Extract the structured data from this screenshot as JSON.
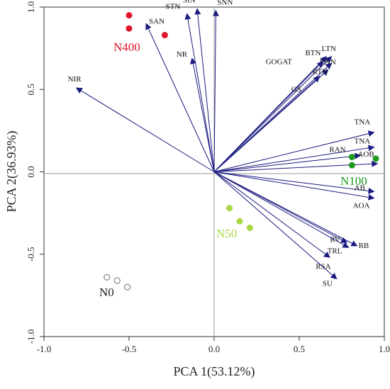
{
  "chart_data": {
    "type": "scatter",
    "subtype": "pca-biplot",
    "xlabel": "PCA 1(53.12%)",
    "ylabel": "PCA 2(36.93%)",
    "xlim": [
      -1.0,
      1.0
    ],
    "ylim": [
      -1.0,
      1.0
    ],
    "x_ticks": [
      {
        "value": -1.0,
        "label": "-1.0"
      },
      {
        "value": -0.5,
        "label": "-0.5"
      },
      {
        "value": 0.0,
        "label": "0.0"
      },
      {
        "value": 0.5,
        "label": "0.5"
      },
      {
        "value": 1.0,
        "label": "1.0"
      }
    ],
    "y_ticks": [
      {
        "value": -1.0,
        "label": "-1.0"
      },
      {
        "value": -0.5,
        "label": "-0.5"
      },
      {
        "value": 0.0,
        "label": "0.0"
      },
      {
        "value": 0.5,
        "label": "0.5"
      },
      {
        "value": 1.0,
        "label": "1.0"
      }
    ],
    "grid": false,
    "reference_lines": {
      "x": 0,
      "y": 0,
      "color": "#9a9a9a"
    },
    "loadings_color": "#1a1a80",
    "loadings": [
      {
        "name": "SAN",
        "x": -0.4,
        "y": 0.9
      },
      {
        "name": "STN",
        "x": -0.16,
        "y": 0.96
      },
      {
        "name": "SIN",
        "x": -0.1,
        "y": 0.99
      },
      {
        "name": "SNN",
        "x": 0.01,
        "y": 0.98
      },
      {
        "name": "NR",
        "x": -0.13,
        "y": 0.69
      },
      {
        "name": "NIR",
        "x": -0.81,
        "y": 0.51
      },
      {
        "name": "BTN",
        "x": 0.66,
        "y": 0.7
      },
      {
        "name": "LTN",
        "x": 0.69,
        "y": 0.7
      },
      {
        "name": "RNN",
        "x": 0.69,
        "y": 0.66
      },
      {
        "name": "RTN",
        "x": 0.67,
        "y": 0.62
      },
      {
        "name": "GOGAT",
        "x": 0.64,
        "y": 0.67
      },
      {
        "name": "GS",
        "x": 0.62,
        "y": 0.58
      },
      {
        "name": "TNA",
        "x": 0.94,
        "y": 0.24
      },
      {
        "name": "TNA",
        "x": 0.94,
        "y": 0.15
      },
      {
        "name": "RAN",
        "x": 0.86,
        "y": 0.1
      },
      {
        "name": "AOB",
        "x": 0.96,
        "y": 0.05
      },
      {
        "name": "AB",
        "x": 0.94,
        "y": -0.12
      },
      {
        "name": "AOA",
        "x": 0.94,
        "y": -0.16
      },
      {
        "name": "RV",
        "x": 0.78,
        "y": -0.43
      },
      {
        "name": "RB",
        "x": 0.84,
        "y": -0.45
      },
      {
        "name": "TRL",
        "x": 0.79,
        "y": -0.46
      },
      {
        "name": "RSA",
        "x": 0.68,
        "y": -0.52
      },
      {
        "name": "SU",
        "x": 0.72,
        "y": -0.65
      }
    ],
    "groups": [
      {
        "name": "N400",
        "color": "#e0142a",
        "filled": true,
        "points": [
          {
            "x": -0.5,
            "y": 0.95
          },
          {
            "x": -0.5,
            "y": 0.87
          },
          {
            "x": -0.29,
            "y": 0.83
          }
        ]
      },
      {
        "name": "N100",
        "color": "#1e9a1e",
        "filled": true,
        "points": [
          {
            "x": 0.81,
            "y": 0.09
          },
          {
            "x": 0.81,
            "y": 0.04
          },
          {
            "x": 0.95,
            "y": 0.08
          }
        ]
      },
      {
        "name": "N50",
        "color": "#a8d844",
        "filled": true,
        "points": [
          {
            "x": 0.09,
            "y": -0.22
          },
          {
            "x": 0.15,
            "y": -0.3
          },
          {
            "x": 0.21,
            "y": -0.34
          }
        ]
      },
      {
        "name": "N0",
        "color": "#808080",
        "filled": false,
        "points": [
          {
            "x": -0.63,
            "y": -0.64
          },
          {
            "x": -0.57,
            "y": -0.66
          },
          {
            "x": -0.51,
            "y": -0.7
          }
        ]
      }
    ]
  }
}
